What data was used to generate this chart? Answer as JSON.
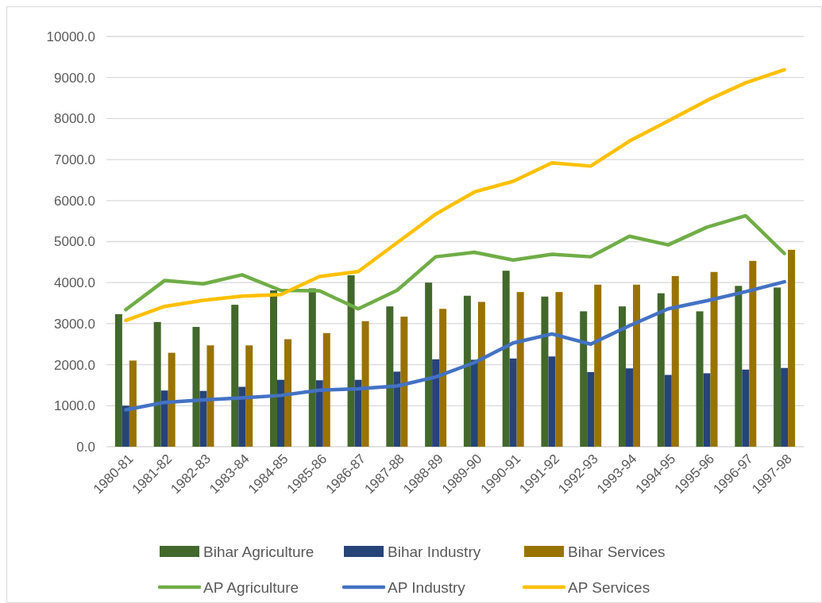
{
  "chart_data": {
    "type": "bar",
    "categories": [
      "1980-81",
      "1981-82",
      "1982-83",
      "1983-84",
      "1984-85",
      "1985-86",
      "1986-87",
      "1987-88",
      "1988-89",
      "1989-90",
      "1990-91",
      "1991-92",
      "1992-93",
      "1993-94",
      "1994-95",
      "1995-96",
      "1996-97",
      "1997-98"
    ],
    "series": [
      {
        "name": "Bihar Agriculture",
        "color": "#43682b",
        "values": [
          3230,
          3040,
          2920,
          3460,
          3810,
          3860,
          4180,
          3420,
          4000,
          3680,
          4290,
          3660,
          3300,
          3420,
          3740,
          3300,
          3920,
          3880
        ]
      },
      {
        "name": "Bihar Industry",
        "color": "#264478",
        "values": [
          1000,
          1370,
          1360,
          1460,
          1630,
          1620,
          1630,
          1830,
          2130,
          2120,
          2150,
          2200,
          1820,
          1910,
          1750,
          1790,
          1880,
          1920
        ]
      },
      {
        "name": "Bihar Services",
        "color": "#997300",
        "values": [
          2100,
          2290,
          2470,
          2470,
          2620,
          2770,
          3060,
          3170,
          3360,
          3530,
          3770,
          3770,
          3950,
          3950,
          4160,
          4260,
          4530,
          4800
        ]
      },
      {
        "name": "AP Agriculture",
        "type": "line",
        "color": "#70ad47",
        "values": [
          3340,
          4050,
          3970,
          4190,
          3810,
          3800,
          3360,
          3810,
          4630,
          4740,
          4550,
          4690,
          4630,
          5130,
          4920,
          5350,
          5630,
          4710
        ]
      },
      {
        "name": "AP Industry",
        "type": "line",
        "color": "#4472c4",
        "values": [
          900,
          1080,
          1140,
          1190,
          1250,
          1380,
          1410,
          1480,
          1700,
          2050,
          2530,
          2750,
          2500,
          2950,
          3360,
          3560,
          3780,
          4020
        ]
      },
      {
        "name": "AP Services",
        "type": "line",
        "color": "#ffc000",
        "values": [
          3080,
          3420,
          3570,
          3670,
          3710,
          4150,
          4270,
          4970,
          5670,
          6210,
          6470,
          6920,
          6840,
          7450,
          7940,
          8440,
          8870,
          9190
        ]
      }
    ],
    "ylim": [
      0,
      10000
    ],
    "yticks": [
      {
        "value": 0,
        "label": "0.0"
      },
      {
        "value": 1000,
        "label": "1000.0"
      },
      {
        "value": 2000,
        "label": "2000.0"
      },
      {
        "value": 3000,
        "label": "3000.0"
      },
      {
        "value": 4000,
        "label": "4000.0"
      },
      {
        "value": 5000,
        "label": "5000.0"
      },
      {
        "value": 6000,
        "label": "6000.0"
      },
      {
        "value": 7000,
        "label": "7000.0"
      },
      {
        "value": 8000,
        "label": "8000.0"
      },
      {
        "value": 9000,
        "label": "9000.0"
      },
      {
        "value": 10000,
        "label": "10000.0"
      }
    ],
    "grid": "y",
    "legend": "bottom",
    "line_style": "solid",
    "marker": "none"
  }
}
